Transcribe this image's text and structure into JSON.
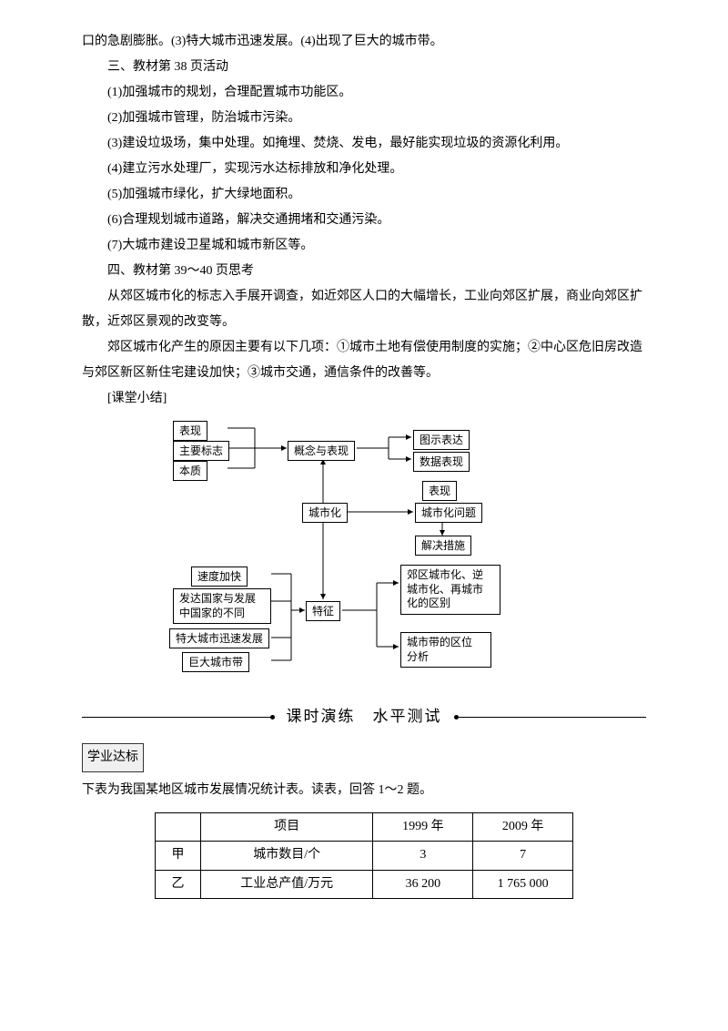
{
  "top": {
    "cont": "口的急剧膨胀。(3)特大城市迅速发展。(4)出现了巨大的城市带。",
    "h3": "三、教材第 38 页活动",
    "li1": "(1)加强城市的规划，合理配置城市功能区。",
    "li2": "(2)加强城市管理，防治城市污染。",
    "li3": "(3)建设垃圾场，集中处理。如掩埋、焚烧、发电，最好能实现垃圾的资源化利用。",
    "li4": "(4)建立污水处理厂，实现污水达标排放和净化处理。",
    "li5": "(5)加强城市绿化，扩大绿地面积。",
    "li6": "(6)合理规划城市道路，解决交通拥堵和交通污染。",
    "li7": "(7)大城市建设卫星城和城市新区等。",
    "h4": "四、教材第 39～40 页思考",
    "p1": "从郊区城市化的标志入手展开调查，如近郊区人口的大幅增长，工业向郊区扩展，商业向郊区扩散，近郊区景观的改变等。",
    "p2": "郊区城市化产生的原因主要有以下几项：①城市土地有偿使用制度的实施；②中心区危旧房改造与郊区新区新住宅建设加快；③城市交通，通信条件的改善等。",
    "summary_label": "[课堂小结]"
  },
  "diagram": {
    "left_top": [
      "表现",
      "主要标志",
      "本质"
    ],
    "mid_top": "概念与表现",
    "right_top": [
      "图示表达",
      "数据表现"
    ],
    "center": "城市化",
    "right_mid_group": [
      "表现",
      "城市化问题",
      "解决措施"
    ],
    "left_bot": [
      "速度加快",
      "发达国家与发展\n中国家的不同",
      "特大城市迅速发展",
      "巨大城市带"
    ],
    "mid_bot": "特征",
    "right_bot": [
      "郊区城市化、逆\n城市化、再城市\n化的区别",
      "城市带的区位\n分析"
    ]
  },
  "divider": "课时演练　水平测试",
  "section_head": "学业达标",
  "table_intro": "下表为我国某地区城市发展情况统计表。读表，回答 1～2 题。",
  "table": {
    "headers": [
      "",
      "项目",
      "1999 年",
      "2009 年"
    ],
    "rows": [
      [
        "甲",
        "城市数目/个",
        "3",
        "7"
      ],
      [
        "乙",
        "工业总产值/万元",
        "36 200",
        "1 765 000"
      ]
    ],
    "col_widths": [
      "50px",
      "190px",
      "110px",
      "110px"
    ]
  },
  "colors": {
    "text": "#000000",
    "bg": "#ffffff",
    "border": "#000000"
  }
}
